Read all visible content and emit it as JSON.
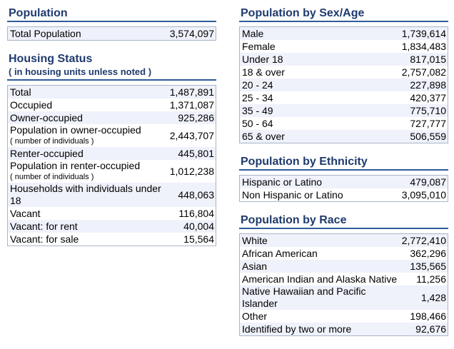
{
  "population": {
    "title": "Population",
    "rows": [
      {
        "label": "Total Population",
        "value": "3,574,097"
      }
    ]
  },
  "housing": {
    "title": "Housing Status",
    "note": "( in housing units unless noted )",
    "rows": [
      {
        "label": "Total",
        "value": "1,487,891"
      },
      {
        "label": "Occupied",
        "value": "1,371,087"
      },
      {
        "label": "Owner-occupied",
        "value": "925,286"
      },
      {
        "label": "Population in owner-occupied",
        "sub": "( number of individuals )",
        "value": "2,443,707"
      },
      {
        "label": "Renter-occupied",
        "value": "445,801"
      },
      {
        "label": "Population in renter-occupied",
        "sub": "( number of individuals )",
        "value": "1,012,238"
      },
      {
        "label": "Households with individuals under 18",
        "value": "448,063"
      },
      {
        "label": "Vacant",
        "value": "116,804"
      },
      {
        "label": "Vacant: for rent",
        "value": "40,004"
      },
      {
        "label": "Vacant: for sale",
        "value": "15,564"
      }
    ]
  },
  "sex_age": {
    "title": "Population by Sex/Age",
    "rows": [
      {
        "label": "Male",
        "value": "1,739,614"
      },
      {
        "label": "Female",
        "value": "1,834,483"
      },
      {
        "label": "Under 18",
        "value": "817,015"
      },
      {
        "label": "18 & over",
        "value": "2,757,082"
      },
      {
        "label": "20 - 24",
        "value": "227,898"
      },
      {
        "label": "25 - 34",
        "value": "420,377"
      },
      {
        "label": "35 - 49",
        "value": "775,710"
      },
      {
        "label": "50 - 64",
        "value": "727,777"
      },
      {
        "label": "65 & over",
        "value": "506,559"
      }
    ]
  },
  "ethnicity": {
    "title": "Population by Ethnicity",
    "rows": [
      {
        "label": "Hispanic or Latino",
        "value": "479,087"
      },
      {
        "label": "Non Hispanic or Latino",
        "value": "3,095,010"
      }
    ]
  },
  "race": {
    "title": "Population by Race",
    "rows": [
      {
        "label": "White",
        "value": "2,772,410"
      },
      {
        "label": "African American",
        "value": "362,296"
      },
      {
        "label": "Asian",
        "value": "135,565"
      },
      {
        "label": "American Indian and Alaska Native",
        "value": "11,256"
      },
      {
        "label": "Native Hawaiian and Pacific Islander",
        "value": "1,428"
      },
      {
        "label": "Other",
        "value": "198,466"
      },
      {
        "label": "Identified by two or more",
        "value": "92,676"
      }
    ]
  }
}
